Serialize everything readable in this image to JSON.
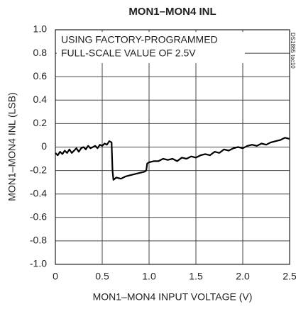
{
  "chart_data": {
    "type": "line",
    "title": "MON1–MON4 INL",
    "xlabel": "MON1–MON4 INPUT VOLTAGE (V)",
    "ylabel": "MON1–MON4 INL (LSB)",
    "annotations": [
      "USING FACTORY-PROGRAMMED",
      "FULL-SCALE VALUE OF 2.5V"
    ],
    "side_note": "DS1865 toc10",
    "color": "#000000",
    "grid": true,
    "xlim": [
      0,
      2.5
    ],
    "ylim": [
      -1.0,
      1.0
    ],
    "xticks": [
      0,
      0.5,
      {
        "value": 1.0,
        "label": "1.0"
      },
      1.5,
      {
        "value": 2.0,
        "label": "2.0"
      },
      2.5
    ],
    "yticks": [
      {
        "value": 1.0,
        "label": "1.0"
      },
      0.8,
      0.6,
      0.4,
      0.2,
      0,
      -0.2,
      -0.4,
      -0.6,
      -0.8,
      {
        "value": -1.0,
        "label": "-1.0"
      }
    ],
    "x": [
      0,
      0.025,
      0.05,
      0.075,
      0.1,
      0.125,
      0.15,
      0.175,
      0.2,
      0.225,
      0.25,
      0.275,
      0.3,
      0.325,
      0.35,
      0.375,
      0.4,
      0.425,
      0.45,
      0.475,
      0.5,
      0.525,
      0.55,
      0.575,
      0.6,
      0.61,
      0.62,
      0.65,
      0.7,
      0.75,
      0.8,
      0.85,
      0.9,
      0.95,
      0.97,
      0.98,
      1.0,
      1.05,
      1.1,
      1.15,
      1.2,
      1.25,
      1.3,
      1.35,
      1.4,
      1.45,
      1.5,
      1.55,
      1.6,
      1.65,
      1.7,
      1.75,
      1.8,
      1.85,
      1.9,
      1.95,
      2.0,
      2.05,
      2.1,
      2.15,
      2.2,
      2.25,
      2.3,
      2.35,
      2.4,
      2.45,
      2.5
    ],
    "values": [
      -0.05,
      -0.07,
      -0.04,
      -0.06,
      -0.03,
      -0.05,
      -0.02,
      -0.05,
      -0.03,
      -0.01,
      -0.04,
      -0.01,
      0.0,
      -0.02,
      0.01,
      -0.01,
      0.0,
      0.01,
      -0.01,
      0.02,
      0.01,
      0.03,
      0.02,
      0.05,
      0.04,
      -0.2,
      -0.28,
      -0.26,
      -0.27,
      -0.25,
      -0.24,
      -0.23,
      -0.22,
      -0.21,
      -0.2,
      -0.14,
      -0.13,
      -0.12,
      -0.12,
      -0.1,
      -0.11,
      -0.1,
      -0.12,
      -0.09,
      -0.1,
      -0.08,
      -0.09,
      -0.07,
      -0.06,
      -0.07,
      -0.04,
      -0.05,
      -0.02,
      -0.03,
      -0.01,
      0.0,
      -0.01,
      0.01,
      0.02,
      0.01,
      0.03,
      0.02,
      0.04,
      0.05,
      0.06,
      0.08,
      0.07
    ]
  }
}
